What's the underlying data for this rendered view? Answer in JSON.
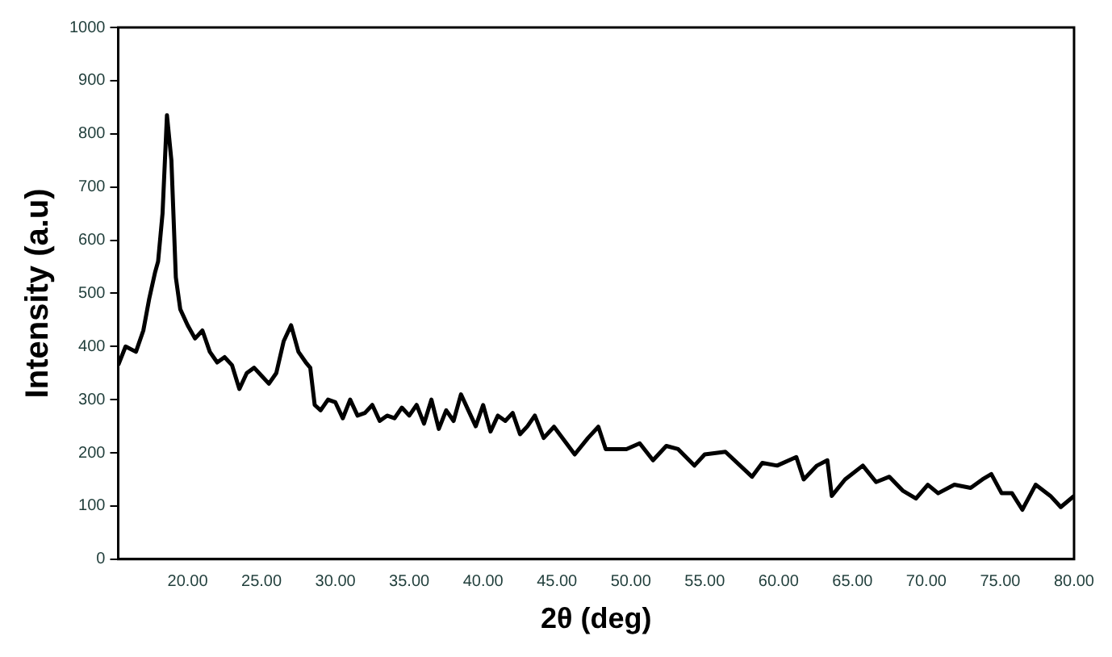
{
  "chart_data": {
    "type": "line",
    "xlabel": "2θ (deg)",
    "ylabel": "Intensity (a.u)",
    "xlim": [
      15.3,
      80
    ],
    "ylim": [
      0,
      1000
    ],
    "xticks": [
      {
        "value": 20,
        "label": "20.00"
      },
      {
        "value": 25,
        "label": "25.00"
      },
      {
        "value": 30,
        "label": "30.00"
      },
      {
        "value": 35,
        "label": "35.00"
      },
      {
        "value": 40,
        "label": "40.00"
      },
      {
        "value": 45,
        "label": "45.00"
      },
      {
        "value": 50,
        "label": "50.00"
      },
      {
        "value": 55,
        "label": "55.00"
      },
      {
        "value": 60,
        "label": "60.00"
      },
      {
        "value": 65,
        "label": "65.00"
      },
      {
        "value": 70,
        "label": "70.00"
      },
      {
        "value": 75,
        "label": "75.00"
      },
      {
        "value": 80,
        "label": "80.00"
      }
    ],
    "yticks": [
      0,
      100,
      200,
      300,
      400,
      500,
      600,
      700,
      800,
      900,
      1000
    ],
    "grid": false,
    "legend": false,
    "marker": "none",
    "line_style": "solid",
    "x": [
      15.3,
      15.8,
      16.5,
      17.0,
      17.4,
      17.8,
      18.0,
      18.3,
      18.6,
      18.9,
      19.2,
      19.5,
      20.0,
      20.5,
      21.0,
      21.5,
      22.0,
      22.5,
      23.0,
      23.5,
      24.0,
      24.5,
      25.0,
      25.5,
      26.0,
      26.5,
      27.0,
      27.5,
      28.0,
      28.3,
      28.6,
      29.0,
      29.5,
      30.0,
      30.5,
      31.0,
      31.5,
      32.0,
      32.5,
      33.0,
      33.5,
      34.0,
      34.5,
      35.0,
      35.5,
      36.0,
      36.5,
      37.0,
      37.5,
      38.0,
      38.5,
      39.0,
      39.5,
      40.0,
      40.5,
      41.0,
      41.5,
      42.0,
      42.5,
      43.0,
      43.5,
      44.1,
      44.8,
      46.2,
      47.1,
      47.8,
      48.3,
      49.7,
      50.6,
      51.5,
      52.4,
      53.2,
      54.3,
      55.0,
      56.4,
      58.2,
      58.9,
      59.9,
      61.2,
      61.7,
      62.6,
      63.3,
      63.6,
      64.5,
      65.7,
      66.6,
      67.5,
      68.4,
      69.3,
      70.1,
      70.8,
      71.9,
      73.0,
      73.8,
      74.4,
      75.1,
      75.8,
      76.5,
      77.4,
      78.4,
      79.1,
      80.0
    ],
    "series": [
      {
        "color": "#000000",
        "values": [
          365,
          400,
          390,
          430,
          490,
          540,
          560,
          650,
          835,
          750,
          530,
          470,
          440,
          415,
          430,
          390,
          370,
          380,
          365,
          320,
          350,
          360,
          345,
          330,
          350,
          410,
          440,
          390,
          370,
          360,
          290,
          280,
          300,
          295,
          265,
          300,
          270,
          275,
          290,
          260,
          270,
          265,
          285,
          270,
          290,
          255,
          300,
          245,
          280,
          260,
          310,
          280,
          250,
          290,
          240,
          270,
          260,
          275,
          235,
          250,
          270,
          228,
          249,
          197,
          228,
          249,
          207,
          207,
          218,
          186,
          213,
          207,
          176,
          197,
          202,
          155,
          181,
          176,
          192,
          150,
          176,
          186,
          119,
          150,
          176,
          145,
          155,
          129,
          114,
          140,
          124,
          140,
          134,
          150,
          160,
          124,
          124,
          93,
          140,
          119,
          98,
          119
        ]
      }
    ]
  }
}
